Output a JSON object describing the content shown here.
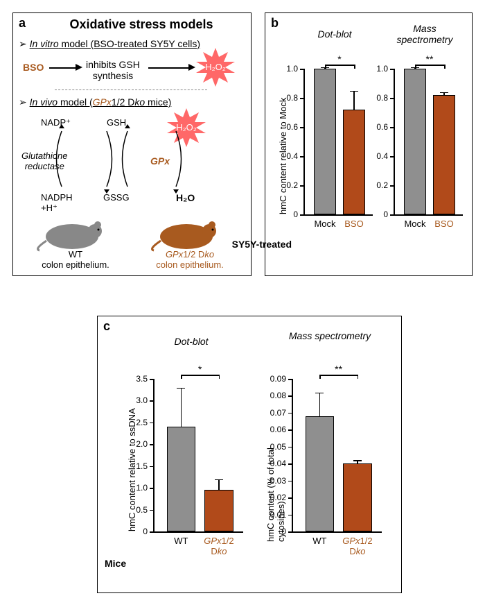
{
  "panelA": {
    "label": "a",
    "title": "Oxidative stress models",
    "bullet1_prefix": "➢ ",
    "bullet1_model_prefix": "In vitro",
    "bullet1_model_rest": " model (BSO-treated SY5Y cells)",
    "bso": "BSO",
    "inhibits1": "inhibits GSH",
    "inhibits2": "synthesis",
    "h2o2": "H₂O₂",
    "bullet2_prefix": "➢ ",
    "bullet2_model_prefix": "In vivo",
    "bullet2_model_rest_pre": " model (",
    "bullet2_gpx": "GPx",
    "bullet2_model_rest_mid": "1/2 D",
    "bullet2_ko": "ko",
    "bullet2_model_rest_post": " mice)",
    "nadp": "NADP⁺",
    "gsh": "GSH",
    "glut_red1": "Glutathione",
    "glut_red2": "reductase",
    "gpx": "GPx",
    "nadph": "NADPH",
    "plus_h": "+H⁺",
    "gssg": "GSSG",
    "h2o": "H₂O",
    "wt1": "WT",
    "wt2": "colon epithelium.",
    "ko_gpx": "GPx",
    "ko_mid": "1/2 D",
    "ko_ko": "ko",
    "ko2": "colon epithelium."
  },
  "panelB": {
    "label": "b",
    "sub1": "Dot-blot",
    "sub2": "Mass spectrometry",
    "y_title": "hmC content relative to Mock",
    "row_label": "SY5Y-treated",
    "cond_mock": "Mock",
    "cond_bso": "BSO",
    "charts": {
      "dotblot": {
        "ymax": 1.0,
        "ytick_step": 0.2,
        "mock": 1.0,
        "bso": 0.72,
        "bso_err": 0.13,
        "sig": "*"
      },
      "ms": {
        "ymax": 1.0,
        "ytick_step": 0.2,
        "mock": 1.0,
        "bso": 0.82,
        "bso_err": 0.02,
        "sig": "**"
      }
    },
    "colors": {
      "mock": "#8f8f8f",
      "bso": "#b14a1a"
    },
    "ticks": [
      "0",
      "0.2",
      "0.4",
      "0.6",
      "0.8",
      "1.0"
    ]
  },
  "panelC": {
    "label": "c",
    "sub1": "Dot-blot",
    "sub2": "Mass spectrometry",
    "y_title1": "hmC content relative to ssDNA",
    "y_title2": "hmC content (% of total cytosines)",
    "row_label": "Mice",
    "cond_wt": "WT",
    "cond_ko_gpx": "GPx",
    "cond_ko_mid": "1/2 D",
    "cond_ko_ko": "ko",
    "charts": {
      "dotblot": {
        "ymax": 3.5,
        "wt": 2.4,
        "wt_err": 0.9,
        "ko": 0.95,
        "ko_err": 0.25,
        "sig": "*",
        "ticks": [
          "0",
          "0.5",
          "1.0",
          "1.5",
          "2.0",
          "2.5",
          "3.0",
          "3.5"
        ]
      },
      "ms": {
        "ymax": 0.09,
        "wt": 0.068,
        "wt_err": 0.014,
        "ko": 0.04,
        "ko_err": 0.002,
        "sig": "**",
        "ticks": [
          "0",
          "0.01",
          "0.02",
          "0.03",
          "0.04",
          "0.05",
          "0.06",
          "0.07",
          "0.08",
          "0.09"
        ]
      }
    },
    "colors": {
      "wt": "#8f8f8f",
      "ko": "#b14a1a"
    }
  }
}
